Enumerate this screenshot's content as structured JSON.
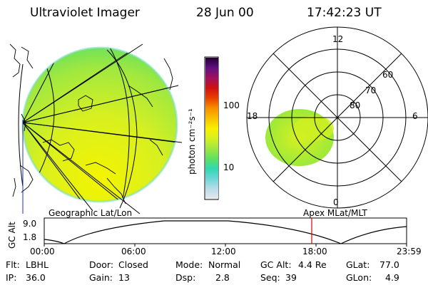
{
  "header": {
    "title": "Ultraviolet Imager",
    "date": "28 Jun 00",
    "time": "17:42:23 UT"
  },
  "colorbar": {
    "unit_label": "photon cm⁻²s⁻¹",
    "tick_100": "100",
    "tick_10": "10",
    "colors": [
      "#e8e8ee",
      "#b8dce8",
      "#6cd8d8",
      "#30d8b0",
      "#60e060",
      "#a0e840",
      "#d8f020",
      "#f8f000",
      "#f8c000",
      "#f89000",
      "#e84000",
      "#d01010",
      "#a01060",
      "#601080",
      "#200030"
    ]
  },
  "map_labels": {
    "left": "Geographic Lat/Lon",
    "right": "Apex MLat/MLT"
  },
  "polar_labels": {
    "mlt_12": "12",
    "mlt_18": "18",
    "mlt_6": "6",
    "mlt_0": "0",
    "mlat_60": "60",
    "mlat_70": "70",
    "mlat_80": "80"
  },
  "altitude_plot": {
    "ylabel": "GC Alt",
    "y_ticks": [
      "9.0",
      "1.8"
    ],
    "x_ticks": [
      "00:00",
      "06:00",
      "12:00",
      "18:00",
      "23:59"
    ],
    "marker_time": "17:42",
    "marker_color": "#e00000"
  },
  "status": {
    "filter_label": "Flt:",
    "filter_value": "LBHL",
    "door_label": "Door:",
    "door_value": "Closed",
    "mode_label": "Mode:",
    "mode_value": "Normal",
    "gcalt_label": "GC Alt:",
    "gcalt_value": "4.4 Re",
    "glat_label": "GLat:",
    "glat_value": "77.0",
    "ip_label": "IP:",
    "ip_value": "36.0",
    "gain_label": "Gain:",
    "gain_value": "13",
    "dsp_label": "Dsp:",
    "dsp_value": "2.8",
    "seq_label": "Seq:",
    "seq_value": "39",
    "glon_label": "GLon:",
    "glon_value": "4.9"
  }
}
